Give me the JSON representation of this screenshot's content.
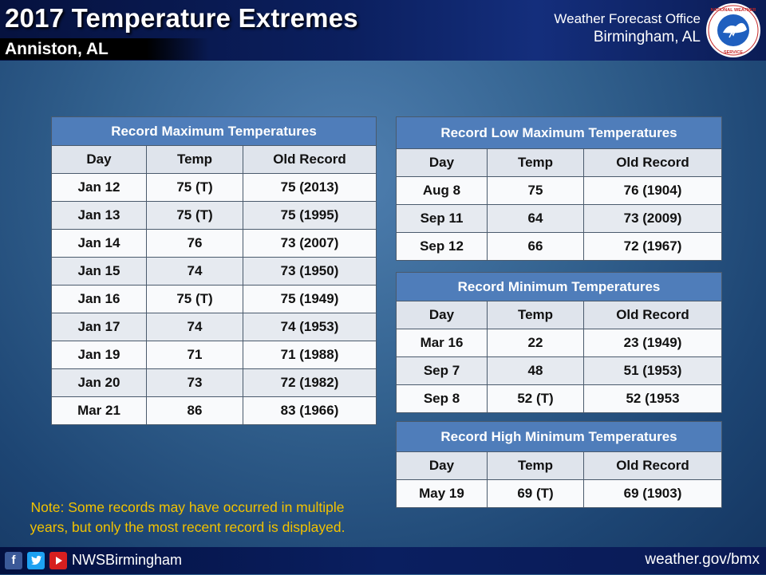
{
  "header": {
    "title": "2017 Temperature Extremes",
    "location": "Anniston, AL",
    "office_line1": "Weather Forecast Office",
    "office_line2": "Birmingham, AL",
    "logo_text": "NATIONAL WEATHER SERVICE"
  },
  "tables": {
    "record_max": {
      "title": "Record Maximum Temperatures",
      "columns": [
        "Day",
        "Temp",
        "Old Record"
      ],
      "rows": [
        [
          "Jan 12",
          "75 (T)",
          "75 (2013)"
        ],
        [
          "Jan 13",
          "75 (T)",
          "75 (1995)"
        ],
        [
          "Jan 14",
          "76",
          "73 (2007)"
        ],
        [
          "Jan 15",
          "74",
          "73 (1950)"
        ],
        [
          "Jan 16",
          "75 (T)",
          "75 (1949)"
        ],
        [
          "Jan 17",
          "74",
          "74 (1953)"
        ],
        [
          "Jan 19",
          "71",
          "71 (1988)"
        ],
        [
          "Jan 20",
          "73",
          "72 (1982)"
        ],
        [
          "Mar 21",
          "86",
          "83 (1966)"
        ]
      ]
    },
    "record_low_max": {
      "title": "Record Low Maximum Temperatures",
      "columns": [
        "Day",
        "Temp",
        "Old Record"
      ],
      "rows": [
        [
          "Aug 8",
          "75",
          "76 (1904)"
        ],
        [
          "Sep 11",
          "64",
          "73 (2009)"
        ],
        [
          "Sep 12",
          "66",
          "72 (1967)"
        ]
      ]
    },
    "record_min": {
      "title": "Record Minimum Temperatures",
      "columns": [
        "Day",
        "Temp",
        "Old Record"
      ],
      "rows": [
        [
          "Mar 16",
          "22",
          "23 (1949)"
        ],
        [
          "Sep 7",
          "48",
          "51 (1953)"
        ],
        [
          "Sep 8",
          "52 (T)",
          "52 (1953"
        ]
      ]
    },
    "record_high_min": {
      "title": "Record High Minimum Temperatures",
      "columns": [
        "Day",
        "Temp",
        "Old Record"
      ],
      "rows": [
        [
          "May 19",
          "69 (T)",
          "69 (1903)"
        ]
      ]
    }
  },
  "note": {
    "line1": "Note: Some records may have occurred in multiple",
    "line2": "years, but only the most recent record is displayed."
  },
  "footer": {
    "handle": "NWSBirmingham",
    "url": "weather.gov/bmx",
    "icons": [
      "facebook-icon",
      "twitter-icon",
      "youtube-icon"
    ]
  },
  "colors": {
    "table_header": "#4f7dba",
    "note_text": "#f2c200",
    "banner": "#0b1f5e"
  }
}
